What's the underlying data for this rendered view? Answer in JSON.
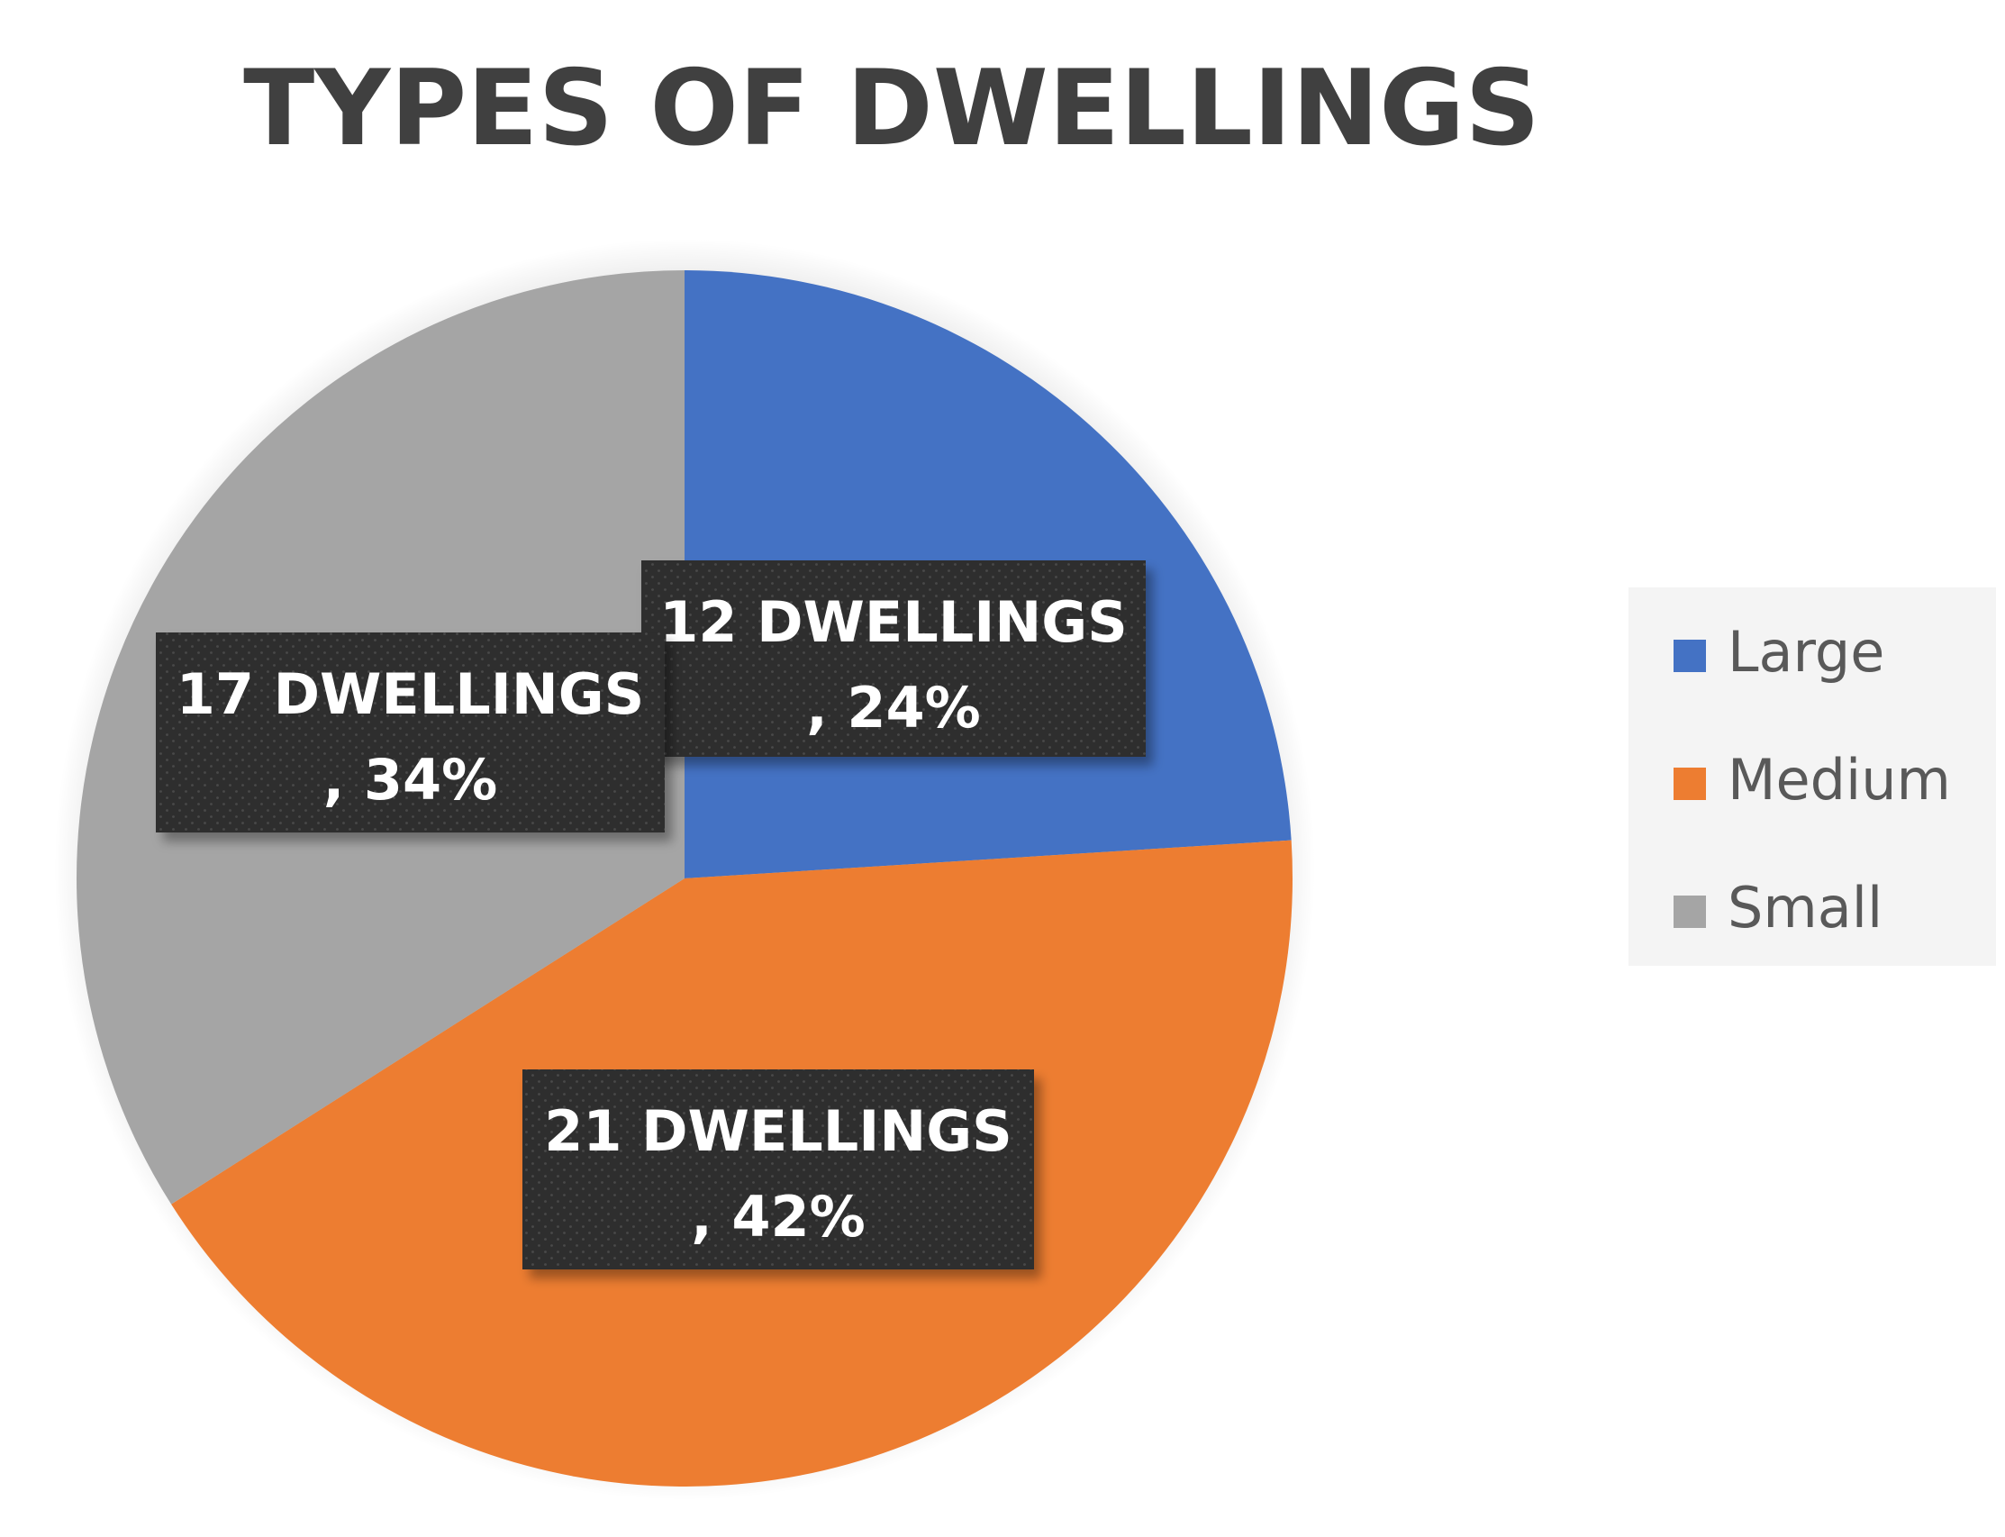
{
  "chart_data": {
    "type": "pie",
    "title": "TYPES OF DWELLINGS",
    "categories": [
      "Large",
      "Medium",
      "Small"
    ],
    "values": [
      12,
      21,
      17
    ],
    "percentages": [
      24,
      42,
      34
    ],
    "data_labels": [
      {
        "line1": "12 DWELLINGS",
        "line2": ", 24%"
      },
      {
        "line1": "21 DWELLINGS",
        "line2": ", 42%"
      },
      {
        "line1": "17 DWELLINGS",
        "line2": ", 34%"
      }
    ],
    "colors": [
      "#4472C4",
      "#ED7D31",
      "#A5A5A5"
    ],
    "legend_position": "right",
    "start_angle": "12 o'clock, clockwise"
  }
}
